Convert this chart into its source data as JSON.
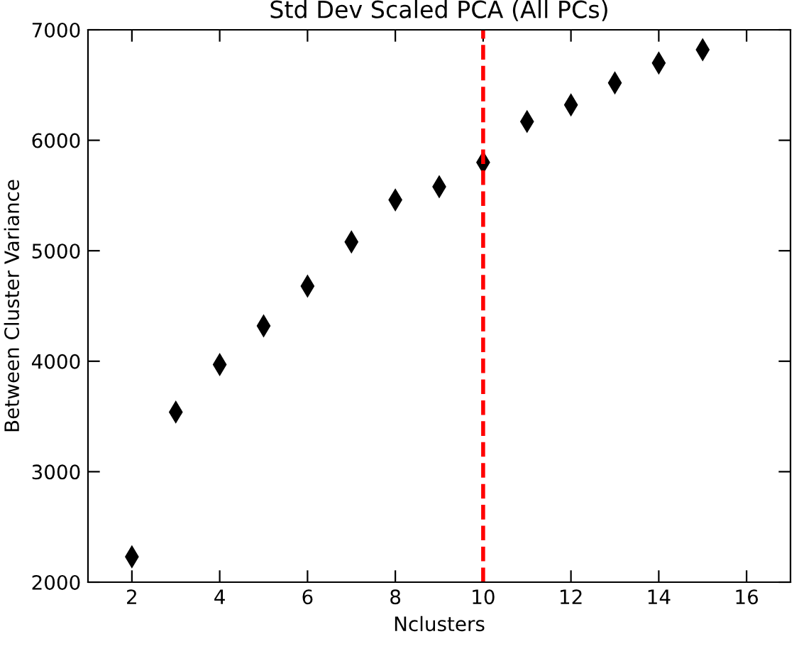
{
  "chart_data": {
    "type": "scatter",
    "title": "Std Dev Scaled PCA (All PCs)",
    "xlabel": "Nclusters",
    "ylabel": "Between Cluster Variance",
    "x": [
      2,
      3,
      4,
      5,
      6,
      7,
      8,
      9,
      10,
      11,
      12,
      13,
      14,
      15
    ],
    "series": [
      {
        "color": "#000000",
        "values": [
          2230,
          3540,
          3970,
          4320,
          4680,
          5080,
          5460,
          5580,
          5800,
          6170,
          6320,
          6520,
          6700,
          6820
        ]
      }
    ],
    "marker": "diamond",
    "xlim": [
      1,
      17
    ],
    "xticks": [
      2,
      4,
      6,
      8,
      10,
      12,
      14,
      16
    ],
    "ylim": [
      2000,
      7000
    ],
    "yticks": [
      2000,
      3000,
      4000,
      5000,
      6000,
      7000
    ],
    "ref_lines": [
      {
        "axis": "x",
        "value": 10,
        "color": "#ff0000",
        "line_style": "dashed"
      }
    ]
  }
}
